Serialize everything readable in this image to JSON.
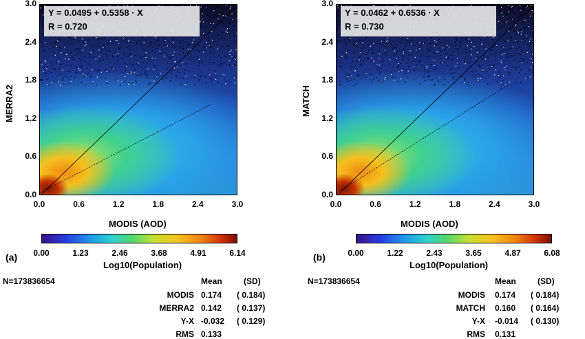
{
  "chart_data": [
    {
      "type": "heatmap",
      "panel_label": "(a)",
      "xlabel": "MODIS (AOD)",
      "ylabel": "MERRA2",
      "xlim": [
        0.0,
        3.0
      ],
      "ylim": [
        0.0,
        3.0
      ],
      "x_ticks": [
        "0.0",
        "0.6",
        "1.2",
        "1.8",
        "2.4",
        "3.0"
      ],
      "y_ticks": [
        "0.0",
        "0.6",
        "1.2",
        "1.8",
        "2.4",
        "3.0"
      ],
      "equation": "Y = 0.0495 + 0.5358 · X",
      "r_text": "R = 0.720",
      "intercept": 0.0495,
      "slope": 0.5358,
      "colorbar_ticks": [
        "0.00",
        "1.23",
        "2.46",
        "3.68",
        "4.91",
        "6.14"
      ],
      "colorbar_label": "Log10(Population)",
      "n_text": "N=173836654",
      "stats_headers": [
        "Mean",
        "(SD)"
      ],
      "stats_rows": [
        {
          "label": "MODIS",
          "mean": "0.174",
          "sd": "( 0.184)"
        },
        {
          "label": "MERRA2",
          "mean": "0.142",
          "sd": "( 0.137)"
        },
        {
          "label": "Y-X",
          "mean": "-0.032",
          "sd": "( 0.129)"
        },
        {
          "label": "RMS",
          "mean": "0.133",
          "sd": ""
        }
      ]
    },
    {
      "type": "heatmap",
      "panel_label": "(b)",
      "xlabel": "MODIS (AOD)",
      "ylabel": "MATCH",
      "xlim": [
        0.0,
        3.0
      ],
      "ylim": [
        0.0,
        3.0
      ],
      "x_ticks": [
        "0.0",
        "0.6",
        "1.2",
        "1.8",
        "2.4",
        "3.0"
      ],
      "y_ticks": [
        "0.0",
        "0.6",
        "1.2",
        "1.8",
        "2.4",
        "3.0"
      ],
      "equation": "Y = 0.0462 + 0.6536 · X",
      "r_text": "R = 0.730",
      "intercept": 0.0462,
      "slope": 0.6536,
      "colorbar_ticks": [
        "0.00",
        "1.22",
        "2.43",
        "3.65",
        "4.87",
        "6.08"
      ],
      "colorbar_label": "Log10(Population)",
      "n_text": "N=173836654",
      "stats_headers": [
        "Mean",
        "(SD)"
      ],
      "stats_rows": [
        {
          "label": "MODIS",
          "mean": "0.174",
          "sd": "( 0.184)"
        },
        {
          "label": "MATCH",
          "mean": "0.160",
          "sd": "( 0.164)"
        },
        {
          "label": "Y-X",
          "mean": "-0.014",
          "sd": "( 0.130)"
        },
        {
          "label": "RMS",
          "mean": "0.131",
          "sd": ""
        }
      ]
    }
  ]
}
